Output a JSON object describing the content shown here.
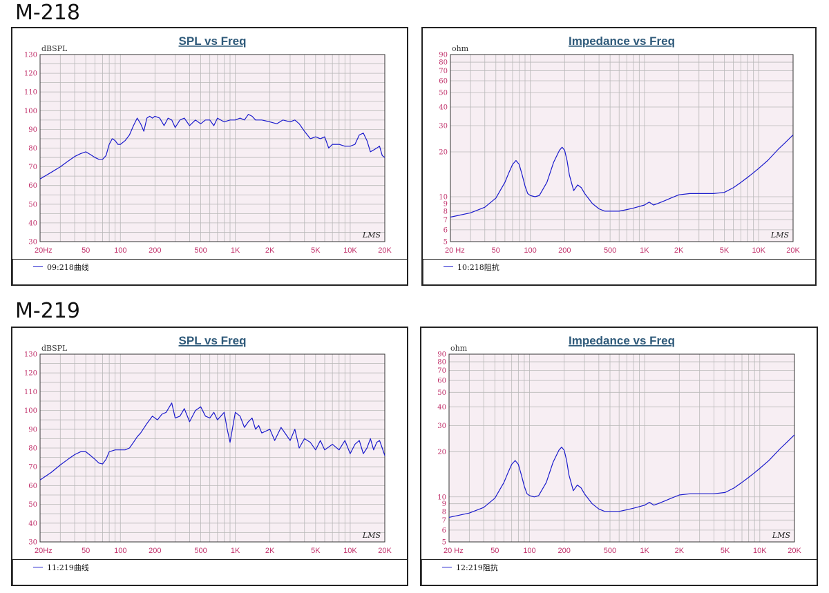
{
  "sections": [
    {
      "title": "M-218"
    },
    {
      "title": "M-219"
    }
  ],
  "colors": {
    "curve": "#1a1acc",
    "tick": "#c0306a",
    "title": "#2f5a7a",
    "plotbg": "#f7eef3",
    "grid": "#b8b8b8"
  },
  "chart_data": [
    {
      "id": "m218-spl",
      "type": "line",
      "title": "SPL vs Freq",
      "ylabel": "dBSPL",
      "xscale": "log",
      "xlim": [
        20,
        20000
      ],
      "ylim": [
        30,
        130
      ],
      "xticks": [
        {
          "v": 20,
          "t": "20Hz"
        },
        {
          "v": 50,
          "t": "50"
        },
        {
          "v": 100,
          "t": "100"
        },
        {
          "v": 200,
          "t": "200"
        },
        {
          "v": 500,
          "t": "500"
        },
        {
          "v": 1000,
          "t": "1K"
        },
        {
          "v": 2000,
          "t": "2K"
        },
        {
          "v": 5000,
          "t": "5K"
        },
        {
          "v": 10000,
          "t": "10K"
        },
        {
          "v": 20000,
          "t": "20K"
        }
      ],
      "yticks": [
        30,
        40,
        50,
        60,
        70,
        80,
        90,
        100,
        110,
        120,
        130
      ],
      "watermark": "LMS",
      "series": [
        {
          "name": "09:218曲线",
          "x": [
            20,
            25,
            30,
            35,
            40,
            45,
            50,
            55,
            60,
            65,
            70,
            75,
            80,
            85,
            90,
            95,
            100,
            110,
            120,
            130,
            140,
            150,
            160,
            170,
            180,
            190,
            200,
            220,
            240,
            260,
            280,
            300,
            330,
            360,
            400,
            450,
            500,
            550,
            600,
            650,
            700,
            800,
            900,
            1000,
            1100,
            1200,
            1300,
            1400,
            1500,
            1700,
            2000,
            2300,
            2600,
            3000,
            3300,
            3600,
            4000,
            4500,
            5000,
            5500,
            6000,
            6500,
            7000,
            8000,
            9000,
            10000,
            11000,
            12000,
            13000,
            14000,
            15000,
            16000,
            17000,
            18000,
            19000,
            20000
          ],
          "y": [
            63.5,
            67,
            70,
            73,
            75.5,
            77,
            78,
            76.5,
            75,
            74,
            74,
            76,
            82,
            85,
            84,
            82,
            82,
            84,
            87,
            92,
            96,
            93,
            89,
            96,
            97,
            96,
            97,
            96,
            92,
            96,
            95,
            91,
            95,
            96,
            92,
            95,
            93,
            95,
            95,
            92,
            96,
            94,
            95,
            95,
            96,
            95,
            98,
            97,
            95,
            95,
            94,
            93,
            95,
            94,
            95,
            93,
            89,
            85,
            86,
            85,
            86,
            80,
            82,
            82,
            81,
            81,
            82,
            87,
            88,
            84,
            78,
            79,
            80,
            81,
            76,
            75
          ]
        }
      ]
    },
    {
      "id": "m218-imp",
      "type": "line",
      "title": "Impedance vs Freq",
      "ylabel": "ohm",
      "xscale": "log",
      "yscale": "log",
      "xlim": [
        20,
        20000
      ],
      "ylim": [
        5,
        90
      ],
      "xticks": [
        {
          "v": 20,
          "t": "20 Hz"
        },
        {
          "v": 50,
          "t": "50"
        },
        {
          "v": 100,
          "t": "100"
        },
        {
          "v": 200,
          "t": "200"
        },
        {
          "v": 500,
          "t": "500"
        },
        {
          "v": 1000,
          "t": "1K"
        },
        {
          "v": 2000,
          "t": "2K"
        },
        {
          "v": 5000,
          "t": "5K"
        },
        {
          "v": 10000,
          "t": "10K"
        },
        {
          "v": 20000,
          "t": "20K"
        }
      ],
      "yticks": [
        5,
        6,
        7,
        8,
        9,
        10,
        20,
        30,
        40,
        50,
        60,
        70,
        80,
        90
      ],
      "watermark": "LMS",
      "series": [
        {
          "name": "10:218阻抗",
          "x": [
            20,
            30,
            40,
            50,
            60,
            65,
            70,
            75,
            80,
            85,
            90,
            95,
            100,
            110,
            120,
            140,
            160,
            180,
            190,
            200,
            210,
            220,
            240,
            260,
            280,
            300,
            350,
            400,
            450,
            500,
            600,
            700,
            800,
            1000,
            1100,
            1200,
            1300,
            1500,
            1700,
            2000,
            2500,
            3000,
            4000,
            5000,
            6000,
            7000,
            8000,
            9000,
            10000,
            12000,
            15000,
            17000,
            20000
          ],
          "y": [
            7.3,
            7.8,
            8.5,
            9.8,
            12.5,
            14.5,
            16.5,
            17.5,
            16.5,
            14,
            11.8,
            10.5,
            10.2,
            10,
            10.2,
            12.5,
            17,
            20.5,
            21.5,
            20.5,
            17.5,
            14,
            11,
            12,
            11.5,
            10.5,
            9,
            8.3,
            8,
            8,
            8,
            8.2,
            8.4,
            8.8,
            9.2,
            8.8,
            9.0,
            9.4,
            9.8,
            10.3,
            10.5,
            10.5,
            10.5,
            10.7,
            11.5,
            12.5,
            13.5,
            14.5,
            15.5,
            17.5,
            21,
            23,
            26
          ]
        }
      ]
    },
    {
      "id": "m219-spl",
      "type": "line",
      "title": "SPL vs Freq",
      "ylabel": "dBSPL",
      "xscale": "log",
      "xlim": [
        20,
        20000
      ],
      "ylim": [
        30,
        130
      ],
      "xticks": [
        {
          "v": 20,
          "t": "20Hz"
        },
        {
          "v": 50,
          "t": "50"
        },
        {
          "v": 100,
          "t": "100"
        },
        {
          "v": 200,
          "t": "200"
        },
        {
          "v": 500,
          "t": "500"
        },
        {
          "v": 1000,
          "t": "1K"
        },
        {
          "v": 2000,
          "t": "2K"
        },
        {
          "v": 5000,
          "t": "5K"
        },
        {
          "v": 10000,
          "t": "10K"
        },
        {
          "v": 20000,
          "t": "20K"
        }
      ],
      "yticks": [
        30,
        40,
        50,
        60,
        70,
        80,
        90,
        100,
        110,
        120,
        130
      ],
      "watermark": "LMS",
      "series": [
        {
          "name": "11:219曲线",
          "x": [
            20,
            25,
            30,
            35,
            40,
            45,
            50,
            55,
            60,
            65,
            70,
            75,
            80,
            90,
            100,
            110,
            120,
            130,
            140,
            150,
            170,
            190,
            210,
            230,
            250,
            280,
            300,
            330,
            360,
            400,
            450,
            500,
            550,
            600,
            650,
            700,
            800,
            850,
            900,
            1000,
            1100,
            1200,
            1300,
            1400,
            1500,
            1600,
            1700,
            2000,
            2200,
            2500,
            3000,
            3300,
            3600,
            4000,
            4500,
            5000,
            5500,
            6000,
            7000,
            8000,
            9000,
            10000,
            11000,
            12000,
            13000,
            14000,
            15000,
            16000,
            17000,
            18000,
            19000,
            20000
          ],
          "y": [
            63,
            67,
            71,
            74,
            76.5,
            78,
            78,
            76,
            74,
            72,
            71.5,
            74,
            78,
            79,
            79,
            79,
            80,
            83,
            86,
            88,
            93,
            97,
            95,
            98,
            99,
            104,
            96,
            97,
            101,
            94,
            100,
            102,
            97,
            96,
            99,
            95,
            99,
            90,
            83,
            99,
            97,
            91,
            94,
            96,
            90,
            92,
            88,
            90,
            84,
            91,
            84,
            90,
            80,
            85,
            83,
            79,
            84,
            79,
            82,
            79,
            84,
            77,
            82,
            84,
            77,
            80,
            85,
            79,
            83,
            84,
            80,
            76
          ]
        }
      ]
    },
    {
      "id": "m219-imp",
      "type": "line",
      "title": "Impedance vs Freq",
      "ylabel": "ohm",
      "xscale": "log",
      "yscale": "log",
      "xlim": [
        20,
        20000
      ],
      "ylim": [
        5,
        90
      ],
      "xticks": [
        {
          "v": 20,
          "t": "20 Hz"
        },
        {
          "v": 50,
          "t": "50"
        },
        {
          "v": 100,
          "t": "100"
        },
        {
          "v": 200,
          "t": "200"
        },
        {
          "v": 500,
          "t": "500"
        },
        {
          "v": 1000,
          "t": "1K"
        },
        {
          "v": 2000,
          "t": "2K"
        },
        {
          "v": 5000,
          "t": "5K"
        },
        {
          "v": 10000,
          "t": "10K"
        },
        {
          "v": 20000,
          "t": "20K"
        }
      ],
      "yticks": [
        5,
        6,
        7,
        8,
        9,
        10,
        20,
        30,
        40,
        50,
        60,
        70,
        80,
        90
      ],
      "watermark": "LMS",
      "series": [
        {
          "name": "12:219阻抗",
          "x": [
            20,
            30,
            40,
            50,
            60,
            65,
            70,
            75,
            80,
            85,
            90,
            95,
            100,
            110,
            120,
            140,
            160,
            180,
            190,
            200,
            210,
            220,
            240,
            260,
            280,
            300,
            350,
            400,
            450,
            500,
            600,
            700,
            800,
            1000,
            1100,
            1200,
            1300,
            1500,
            1700,
            2000,
            2500,
            3000,
            4000,
            5000,
            6000,
            7000,
            8000,
            9000,
            10000,
            12000,
            15000,
            17000,
            20000
          ],
          "y": [
            7.3,
            7.8,
            8.5,
            9.8,
            12.5,
            14.5,
            16.5,
            17.5,
            16.5,
            14,
            11.8,
            10.5,
            10.2,
            10,
            10.2,
            12.5,
            17,
            20.5,
            21.5,
            20.5,
            17.5,
            14,
            11,
            12,
            11.5,
            10.5,
            9,
            8.3,
            8,
            8,
            8,
            8.2,
            8.4,
            8.8,
            9.2,
            8.8,
            9.0,
            9.4,
            9.8,
            10.3,
            10.5,
            10.5,
            10.5,
            10.7,
            11.5,
            12.5,
            13.5,
            14.5,
            15.5,
            17.5,
            21,
            23,
            26
          ]
        }
      ]
    }
  ]
}
